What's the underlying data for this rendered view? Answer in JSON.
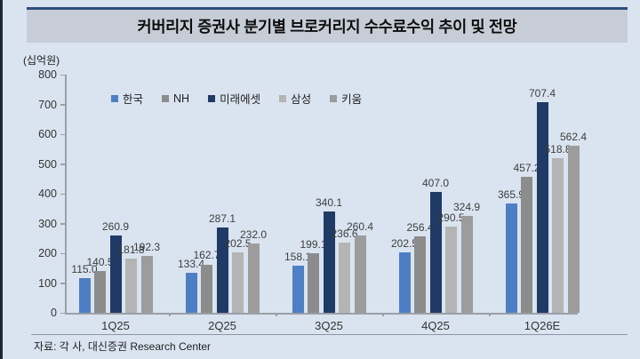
{
  "title": "커버리지 증권사 분기별 브로커리지 수수료수익 추이 및 전망",
  "source": "자료: 각 사, 대신증권 Research Center",
  "chart_data": {
    "type": "bar",
    "title": "커버리지 증권사 분기별 브로커리지 수수료수익 추이 및 전망",
    "unit": "(십억원)",
    "categories": [
      "1Q25",
      "2Q25",
      "3Q25",
      "4Q25",
      "1Q26E"
    ],
    "series": [
      {
        "name": "한국",
        "color": "#4E7FC4",
        "values": [
          115.0,
          133.4,
          158.1,
          202.5,
          365.9
        ]
      },
      {
        "name": "NH",
        "color": "#8C8C8C",
        "values": [
          140.5,
          162.7,
          199.1,
          256.4,
          457.2
        ]
      },
      {
        "name": "미래에셋",
        "color": "#1F3A64",
        "values": [
          260.9,
          287.1,
          340.1,
          407.0,
          707.4
        ]
      },
      {
        "name": "삼성",
        "color": "#B4B4B4",
        "values": [
          181.8,
          202.5,
          236.6,
          290.5,
          518.8
        ]
      },
      {
        "name": "키움",
        "color": "#9C9C9C",
        "values": [
          192.3,
          232.0,
          260.4,
          324.9,
          562.4
        ]
      }
    ],
    "ylim": [
      0,
      800
    ],
    "ytick_step": 100,
    "grid": false,
    "legend_position": "top-left",
    "value_labels": true,
    "value_label_decimals": 1
  }
}
